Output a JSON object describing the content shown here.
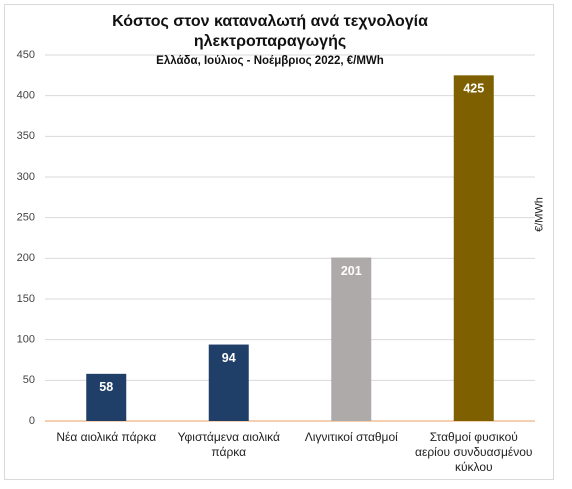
{
  "chart_data": {
    "type": "bar",
    "title": "Κόστος στον καταναλωτή ανά τεχνολογία ηλεκτροπαραγωγής",
    "subtitle": "Ελλάδα, Ιούλιος - Νοέμβριος 2022, €/MWh",
    "y_label": "€/MWh",
    "categories": [
      "Νέα αιολικά πάρκα",
      "Υφιστάμενα αιολικά πάρκα",
      "Λιγνιτικοί σταθμοί",
      "Σταθμοί φυσικού αερίου συνδυασμένου κύκλου"
    ],
    "values": [
      58,
      94,
      201,
      425
    ],
    "colors": [
      "#203f68",
      "#203f68",
      "#aeaaaa",
      "#7f6000"
    ],
    "ylim": [
      0,
      450
    ],
    "yticks": [
      0,
      50,
      100,
      150,
      200,
      250,
      300,
      350,
      400,
      450
    ],
    "grid": true
  }
}
